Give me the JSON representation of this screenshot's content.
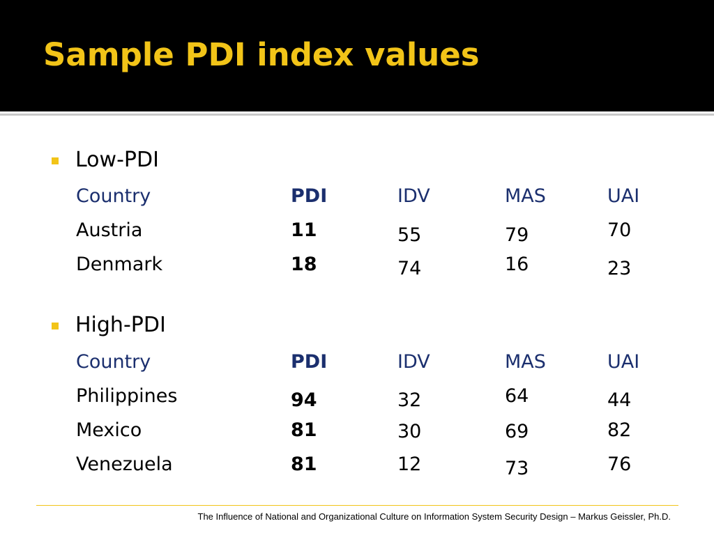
{
  "slide": {
    "title": "Sample PDI index values",
    "footer": "The Influence of National and Organizational Culture on Information System Security Design – Markus Geissler, Ph.D."
  },
  "colors": {
    "accent": "#f2c418",
    "header_text": "#1b2f6e",
    "title_bg": "#000000"
  },
  "sections": [
    {
      "label": "Low-PDI",
      "headers": [
        "Country",
        "PDI",
        "IDV",
        "MAS",
        "UAI"
      ],
      "rows": [
        [
          "Austria",
          "11",
          "55",
          "79",
          "70"
        ],
        [
          "Denmark",
          "18",
          "74",
          "16",
          "23"
        ]
      ]
    },
    {
      "label": "High-PDI",
      "headers": [
        "Country",
        "PDI",
        "IDV",
        "MAS",
        "UAI"
      ],
      "rows": [
        [
          "Philippines",
          "94",
          "32",
          "64",
          "44"
        ],
        [
          "Mexico",
          "81",
          "30",
          "69",
          "82"
        ],
        [
          "Venezuela",
          "81",
          "12",
          "73",
          "76"
        ]
      ]
    }
  ]
}
